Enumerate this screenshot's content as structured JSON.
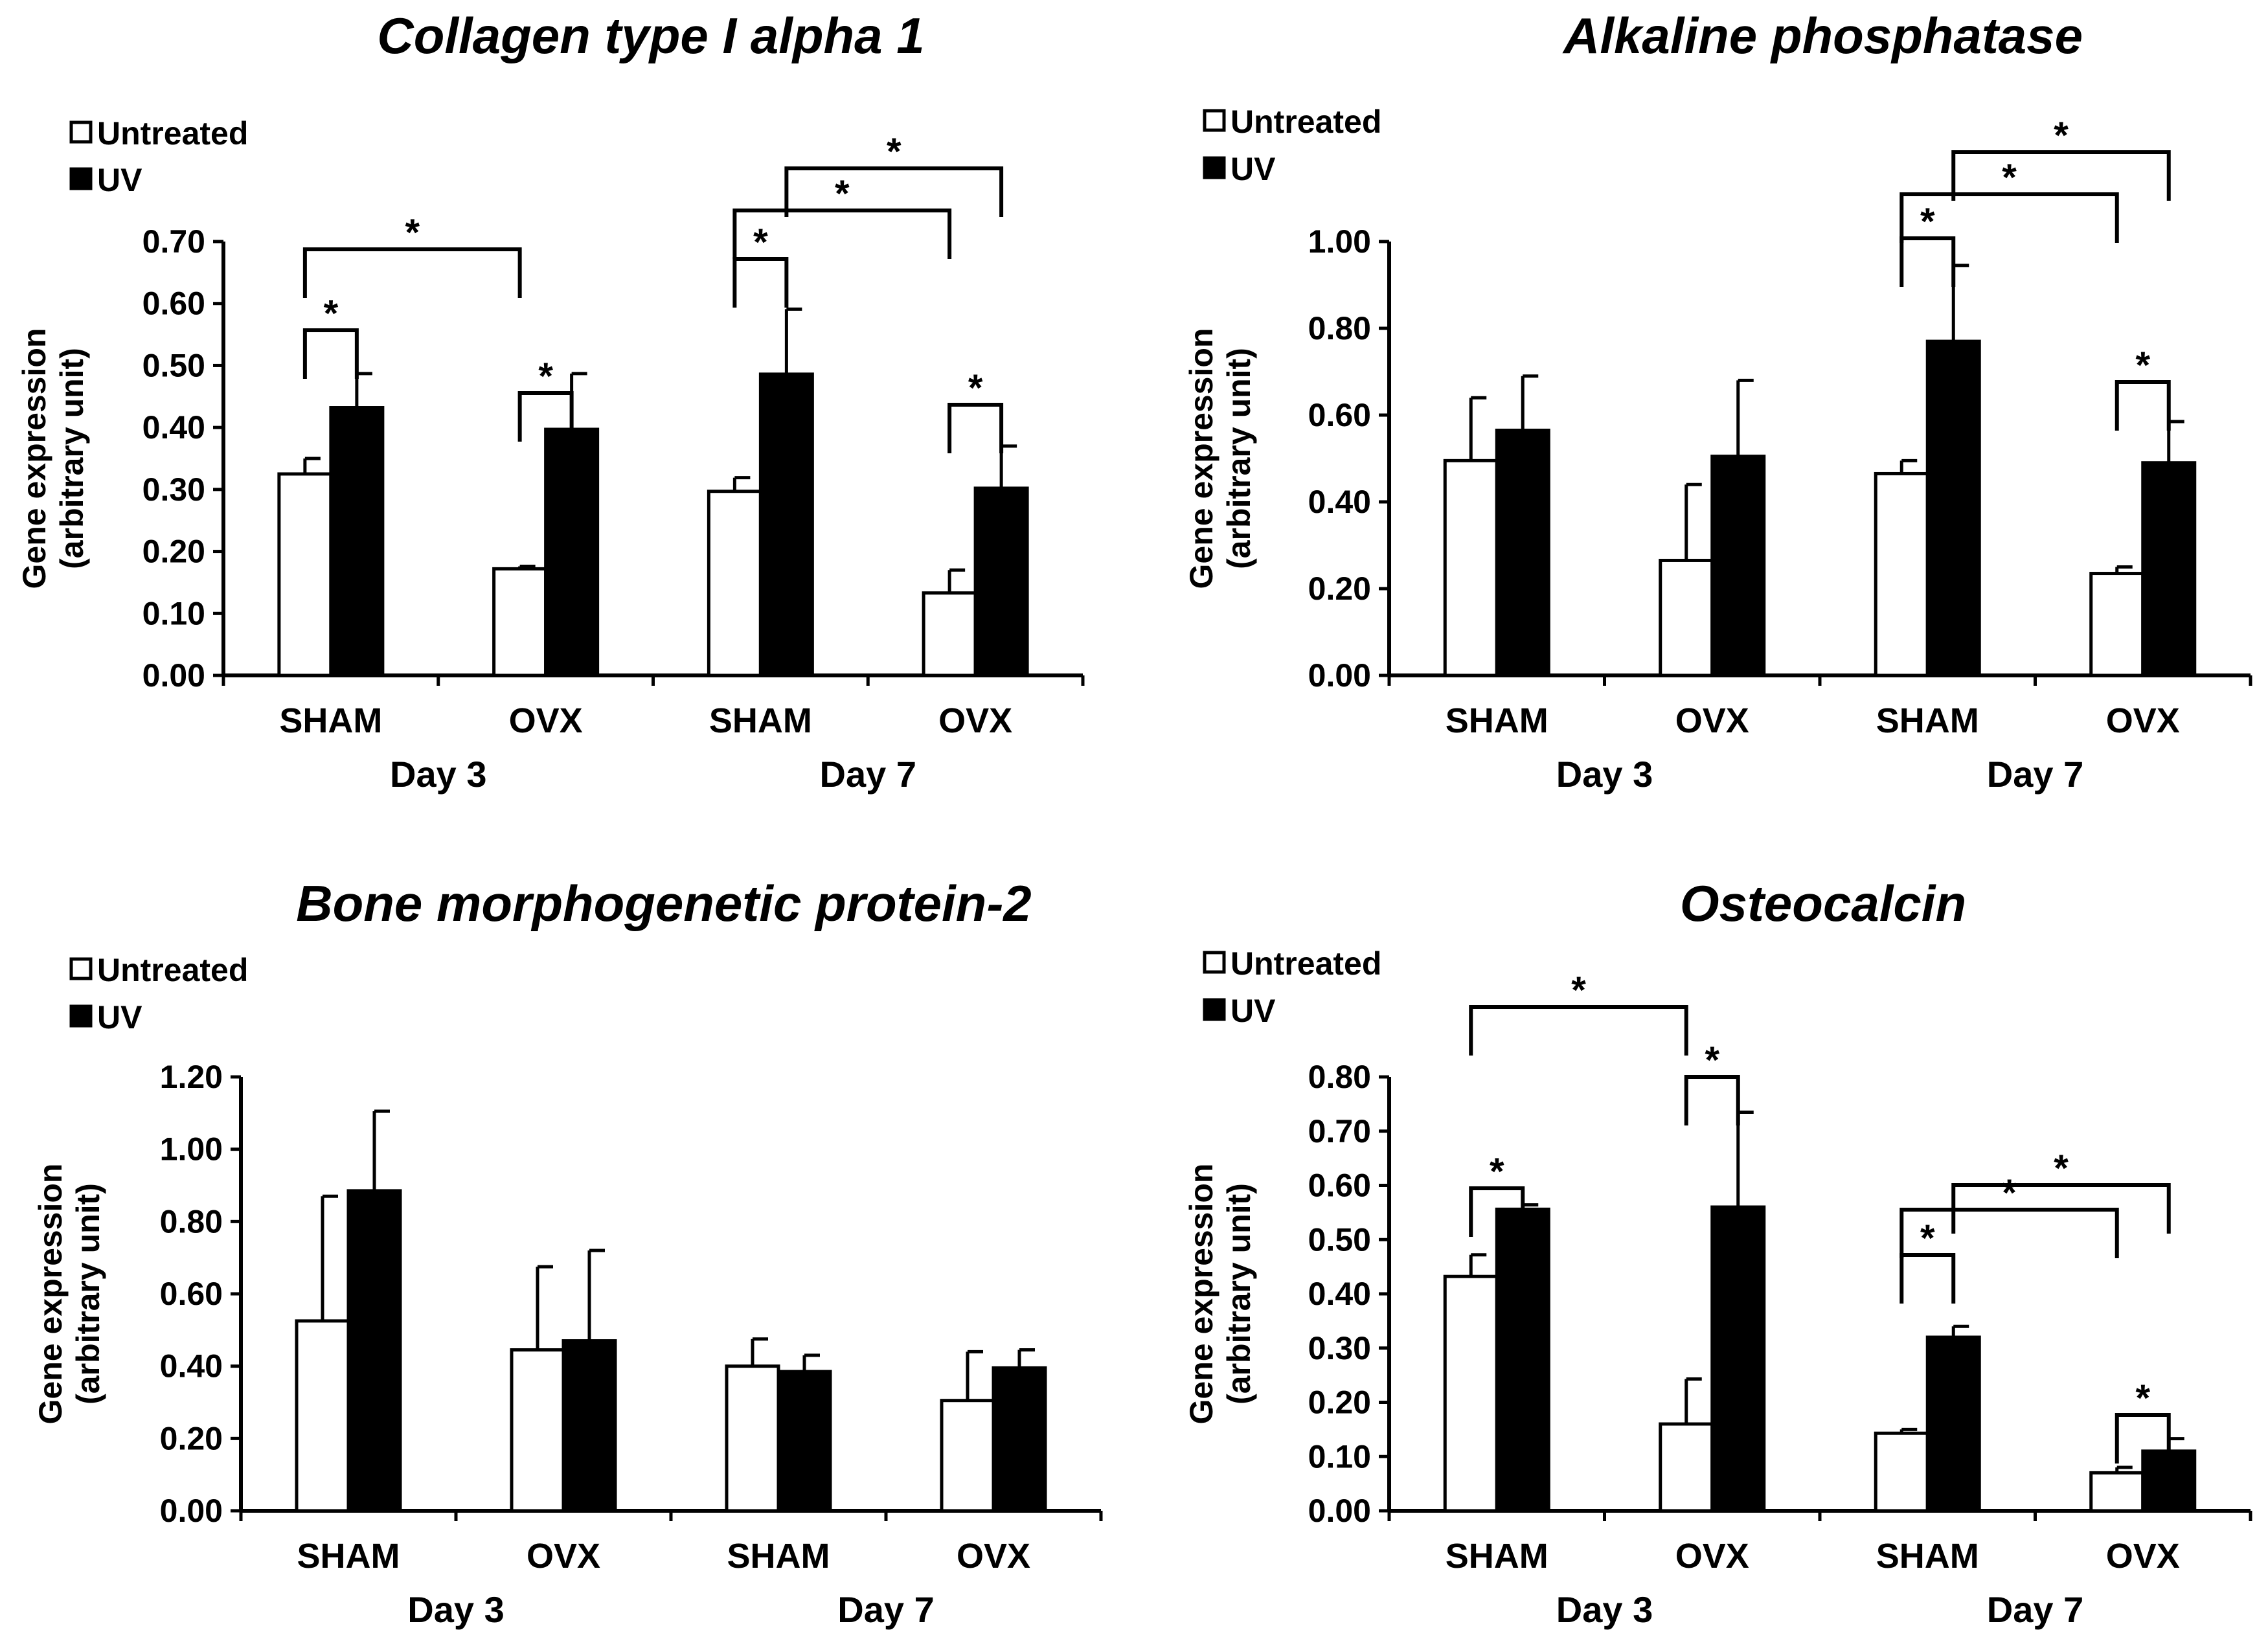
{
  "chart_data": [
    {
      "type": "bar",
      "title": "Collagen type I alpha 1",
      "ylabel": [
        "Gene expression",
        "(arbitrary unit)"
      ],
      "ylim": [
        0,
        0.7
      ],
      "yticks": [
        "0.00",
        "0.10",
        "0.20",
        "0.30",
        "0.40",
        "0.50",
        "0.60",
        "0.70"
      ],
      "categories": [
        "SHAM",
        "OVX",
        "SHAM",
        "OVX"
      ],
      "groups": [
        {
          "label": "Day 3",
          "span": [
            0,
            1
          ]
        },
        {
          "label": "Day 7",
          "span": [
            2,
            3
          ]
        }
      ],
      "legend": {
        "position": "top-left",
        "entries": [
          "Untreated",
          "UV"
        ]
      },
      "series": [
        {
          "name": "Untreated",
          "values": [
            0.325,
            0.172,
            0.297,
            0.133
          ],
          "errors": [
            0.025,
            0.004,
            0.022,
            0.037
          ]
        },
        {
          "name": "UV",
          "values": [
            0.432,
            0.397,
            0.486,
            0.302
          ],
          "errors": [
            0.055,
            0.09,
            0.105,
            0.068
          ]
        }
      ],
      "significance": [
        {
          "from": [
            0,
            0
          ],
          "to": [
            0,
            1
          ],
          "label": "*"
        },
        {
          "from": [
            1,
            0
          ],
          "to": [
            1,
            1
          ],
          "label": "*"
        },
        {
          "from": [
            0,
            0
          ],
          "to": [
            1,
            0
          ],
          "label": "*"
        },
        {
          "from": [
            2,
            0
          ],
          "to": [
            2,
            1
          ],
          "label": "*"
        },
        {
          "from": [
            3,
            0
          ],
          "to": [
            3,
            1
          ],
          "label": "*"
        },
        {
          "from": [
            2,
            0
          ],
          "to": [
            3,
            0
          ],
          "label": "*"
        },
        {
          "from": [
            2,
            1
          ],
          "to": [
            3,
            1
          ],
          "label": "*"
        }
      ]
    },
    {
      "type": "bar",
      "title": "Alkaline phosphatase",
      "ylabel": [
        "Gene expression",
        "(arbitrary unit)"
      ],
      "ylim": [
        0,
        1.0
      ],
      "yticks": [
        "0.00",
        "0.20",
        "0.40",
        "0.60",
        "0.80",
        "1.00"
      ],
      "categories": [
        "SHAM",
        "OVX",
        "SHAM",
        "OVX"
      ],
      "groups": [
        {
          "label": "Day 3",
          "span": [
            0,
            1
          ]
        },
        {
          "label": "Day 7",
          "span": [
            2,
            3
          ]
        }
      ],
      "legend": {
        "position": "top-left",
        "entries": [
          "Untreated",
          "UV"
        ]
      },
      "series": [
        {
          "name": "Untreated",
          "values": [
            0.495,
            0.265,
            0.465,
            0.235
          ],
          "errors": [
            0.145,
            0.175,
            0.03,
            0.015
          ]
        },
        {
          "name": "UV",
          "values": [
            0.565,
            0.505,
            0.77,
            0.49
          ],
          "errors": [
            0.125,
            0.175,
            0.175,
            0.095
          ]
        }
      ],
      "significance": [
        {
          "from": [
            2,
            0
          ],
          "to": [
            2,
            1
          ],
          "label": "*"
        },
        {
          "from": [
            3,
            0
          ],
          "to": [
            3,
            1
          ],
          "label": "*"
        },
        {
          "from": [
            2,
            0
          ],
          "to": [
            3,
            0
          ],
          "label": "*"
        },
        {
          "from": [
            2,
            1
          ],
          "to": [
            3,
            1
          ],
          "label": "*"
        }
      ]
    },
    {
      "type": "bar",
      "title": "Bone morphogenetic protein-2",
      "ylabel": [
        "Gene expression",
        "(arbitrary unit)"
      ],
      "ylim": [
        0,
        1.2
      ],
      "yticks": [
        "0.00",
        "0.20",
        "0.40",
        "0.60",
        "0.80",
        "1.00",
        "1.20"
      ],
      "categories": [
        "SHAM",
        "OVX",
        "SHAM",
        "OVX"
      ],
      "groups": [
        {
          "label": "Day 3",
          "span": [
            0,
            1
          ]
        },
        {
          "label": "Day 7",
          "span": [
            2,
            3
          ]
        }
      ],
      "legend": {
        "position": "top-left",
        "entries": [
          "Untreated",
          "UV"
        ]
      },
      "series": [
        {
          "name": "Untreated",
          "values": [
            0.525,
            0.445,
            0.4,
            0.305
          ],
          "errors": [
            0.345,
            0.23,
            0.075,
            0.135
          ]
        },
        {
          "name": "UV",
          "values": [
            0.885,
            0.47,
            0.385,
            0.395
          ],
          "errors": [
            0.22,
            0.25,
            0.045,
            0.05
          ]
        }
      ],
      "significance": []
    },
    {
      "type": "bar",
      "title": "Osteocalcin",
      "ylabel": [
        "Gene expression",
        "(arbitrary unit)"
      ],
      "ylim": [
        0,
        0.8
      ],
      "yticks": [
        "0.00",
        "0.10",
        "0.20",
        "0.30",
        "0.40",
        "0.50",
        "0.60",
        "0.70",
        "0.80"
      ],
      "categories": [
        "SHAM",
        "OVX",
        "SHAM",
        "OVX"
      ],
      "groups": [
        {
          "label": "Day 3",
          "span": [
            0,
            1
          ]
        },
        {
          "label": "Day 7",
          "span": [
            2,
            3
          ]
        }
      ],
      "legend": {
        "position": "top-left",
        "entries": [
          "Untreated",
          "UV"
        ]
      },
      "series": [
        {
          "name": "Untreated",
          "values": [
            0.432,
            0.16,
            0.143,
            0.07
          ],
          "errors": [
            0.04,
            0.083,
            0.007,
            0.01
          ]
        },
        {
          "name": "UV",
          "values": [
            0.556,
            0.56,
            0.32,
            0.11
          ],
          "errors": [
            0.008,
            0.175,
            0.02,
            0.023
          ]
        }
      ],
      "significance": [
        {
          "from": [
            0,
            0
          ],
          "to": [
            0,
            1
          ],
          "label": "*"
        },
        {
          "from": [
            1,
            0
          ],
          "to": [
            1,
            1
          ],
          "label": "*"
        },
        {
          "from": [
            0,
            0
          ],
          "to": [
            1,
            0
          ],
          "label": "*"
        },
        {
          "from": [
            2,
            0
          ],
          "to": [
            2,
            1
          ],
          "label": "*"
        },
        {
          "from": [
            3,
            0
          ],
          "to": [
            3,
            1
          ],
          "label": "*"
        },
        {
          "from": [
            2,
            0
          ],
          "to": [
            3,
            0
          ],
          "label": "*"
        },
        {
          "from": [
            2,
            1
          ],
          "to": [
            3,
            1
          ],
          "label": "*"
        }
      ]
    }
  ]
}
